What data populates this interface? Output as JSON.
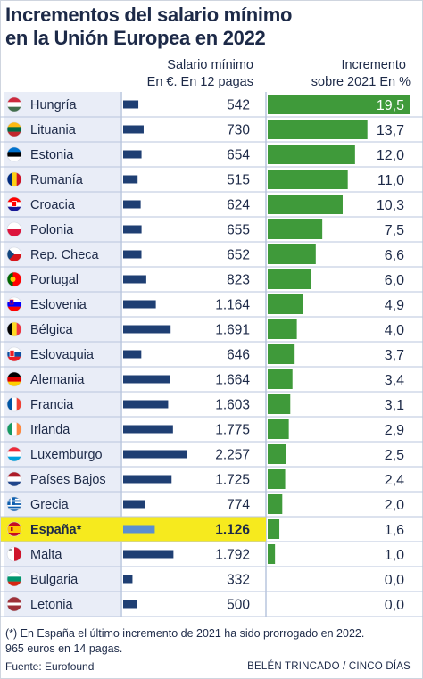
{
  "title_line1": "Incrementos del salario mínimo",
  "title_line2": "en la Unión Europea en 2022",
  "chart_data": {
    "type": "bar",
    "columns": {
      "salary_header_1": "Salario mínimo",
      "salary_header_2": "En €. En 12 pagas",
      "increase_header_1": "Incremento",
      "increase_header_2": "sobre 2021 En %"
    },
    "categories": [
      "Hungría",
      "Lituania",
      "Estonia",
      "Rumanía",
      "Croacia",
      "Polonia",
      "Rep. Checa",
      "Portugal",
      "Eslovenia",
      "Bélgica",
      "Eslovaquia",
      "Alemania",
      "Francia",
      "Irlanda",
      "Luxemburgo",
      "Países Bajos",
      "Grecia",
      "España*",
      "Malta",
      "Bulgaria",
      "Letonia"
    ],
    "highlight": "España*",
    "series": [
      {
        "values": [
          542,
          730,
          654,
          515,
          624,
          655,
          652,
          823,
          1164,
          1691,
          646,
          1664,
          1603,
          1775,
          2257,
          1725,
          774,
          1126,
          1792,
          332,
          500
        ],
        "labels": [
          "542",
          "730",
          "654",
          "515",
          "624",
          "655",
          "652",
          "823",
          "1.164",
          "1.691",
          "646",
          "1.664",
          "1.603",
          "1.775",
          "2.257",
          "1.725",
          "774",
          "1.126",
          "1.792",
          "332",
          "500"
        ]
      },
      {
        "values": [
          19.5,
          13.7,
          12.0,
          11.0,
          10.3,
          7.5,
          6.6,
          6.0,
          4.9,
          4.0,
          3.7,
          3.4,
          3.1,
          2.9,
          2.5,
          2.4,
          2.0,
          1.6,
          1.0,
          0.0,
          0.0
        ],
        "labels": [
          "19,5",
          "13,7",
          "12,0",
          "11,0",
          "10,3",
          "7,5",
          "6,6",
          "6,0",
          "4,9",
          "4,0",
          "3,7",
          "3,4",
          "3,1",
          "2,9",
          "2,5",
          "2,4",
          "2,0",
          "1,6",
          "1,0",
          "0,0",
          "0,0"
        ]
      }
    ],
    "flags": [
      "hungary-flag-icon",
      "lithuania-flag-icon",
      "estonia-flag-icon",
      "romania-flag-icon",
      "croatia-flag-icon",
      "poland-flag-icon",
      "czech-flag-icon",
      "portugal-flag-icon",
      "slovenia-flag-icon",
      "belgium-flag-icon",
      "slovakia-flag-icon",
      "germany-flag-icon",
      "france-flag-icon",
      "ireland-flag-icon",
      "luxembourg-flag-icon",
      "netherlands-flag-icon",
      "greece-flag-icon",
      "spain-flag-icon",
      "malta-flag-icon",
      "bulgaria-flag-icon",
      "latvia-flag-icon"
    ]
  },
  "colors": {
    "title": "#1d2a48",
    "salary_bar": "#1f3f73",
    "salary_bar_highlight": "#5b8fd0",
    "increase_bar": "#3f9a3a",
    "row_tint": "#e9edf7",
    "highlight_row": "#f6ea1e",
    "separator": "#b9c5dd"
  },
  "footnote_line1": "(*) En España el último incremento de 2021 ha sido prorrogado en 2022.",
  "footnote_line2": "965 euros en 14 pagas.",
  "source": "Fuente: Eurofound",
  "credit": "BELÉN TRINCADO / CINCO DÍAS"
}
